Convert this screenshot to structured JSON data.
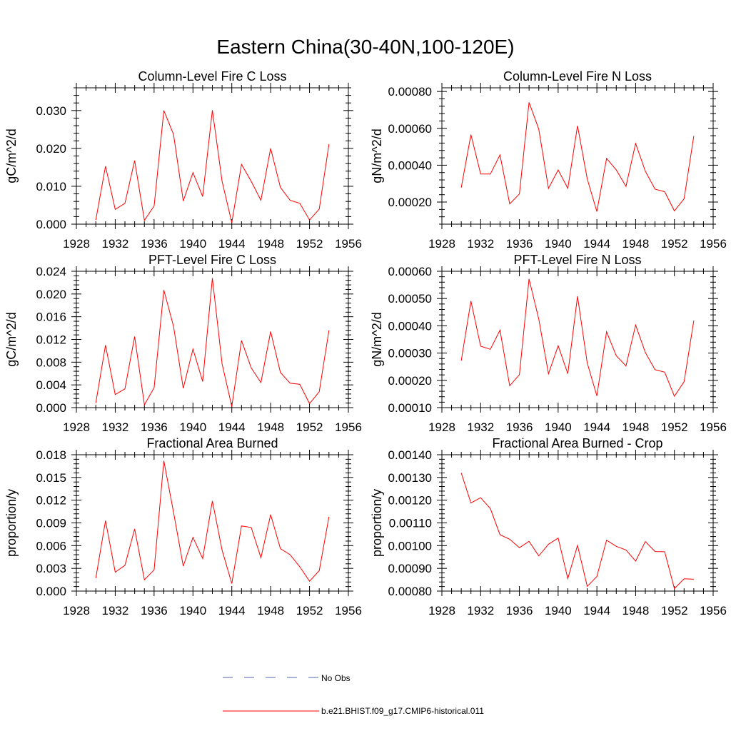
{
  "figure": {
    "title": "Eastern China(30-40N,100-120E)"
  },
  "legend": {
    "entries": [
      {
        "label": "No Obs",
        "color": "#5560b0",
        "style": "dashed"
      },
      {
        "label": "b.e21.BHIST.f09_g17.CMIP6-historical.011",
        "color": "#ff0000",
        "style": "solid"
      }
    ]
  },
  "chart_data": [
    {
      "type": "line",
      "title": "Column-Level Fire C Loss",
      "xlabel": "",
      "ylabel": "gC/m^2/d",
      "xlim": [
        1928,
        1956
      ],
      "xticks": [
        "1928",
        "1932",
        "1936",
        "1940",
        "1944",
        "1948",
        "1952",
        "1956"
      ],
      "ylim": [
        0,
        0.036
      ],
      "yticks": [
        "0.000",
        "0.010",
        "0.020",
        "0.030"
      ],
      "x": [
        1930,
        1931,
        1932,
        1933,
        1934,
        1935,
        1936,
        1937,
        1938,
        1939,
        1940,
        1941,
        1942,
        1943,
        1944,
        1945,
        1946,
        1947,
        1948,
        1949,
        1950,
        1951,
        1952,
        1953,
        1954
      ],
      "series": [
        {
          "color": "#ff0000",
          "values": [
            0.0011,
            0.0153,
            0.0039,
            0.0055,
            0.0168,
            0.001,
            0.0048,
            0.03,
            0.0237,
            0.0061,
            0.0136,
            0.0073,
            0.0301,
            0.0113,
            0.0004,
            0.0158,
            0.0113,
            0.0063,
            0.02,
            0.0097,
            0.0063,
            0.0055,
            0.0011,
            0.004,
            0.0211
          ]
        }
      ]
    },
    {
      "type": "line",
      "title": "Column-Level Fire N Loss",
      "xlabel": "",
      "ylabel": "gN/m^2/d",
      "xlim": [
        1928,
        1956
      ],
      "xticks": [
        "1928",
        "1932",
        "1936",
        "1940",
        "1944",
        "1948",
        "1952",
        "1956"
      ],
      "ylim": [
        8e-05,
        0.00082
      ],
      "yticks": [
        "0.00020",
        "0.00040",
        "0.00060",
        "0.00080"
      ],
      "x": [
        1930,
        1931,
        1932,
        1933,
        1934,
        1935,
        1936,
        1937,
        1938,
        1939,
        1940,
        1941,
        1942,
        1943,
        1944,
        1945,
        1946,
        1947,
        1948,
        1949,
        1950,
        1951,
        1952,
        1953,
        1954
      ],
      "series": [
        {
          "color": "#ff0000",
          "values": [
            0.000278,
            0.000566,
            0.000352,
            0.000352,
            0.000456,
            0.00019,
            0.000244,
            0.000741,
            0.000596,
            0.000274,
            0.000374,
            0.000274,
            0.000614,
            0.000326,
            0.000148,
            0.000437,
            0.000374,
            0.000285,
            0.000518,
            0.000367,
            0.00027,
            0.000256,
            0.000152,
            0.000218,
            0.000559
          ]
        }
      ]
    },
    {
      "type": "line",
      "title": "PFT-Level Fire C Loss",
      "xlabel": "",
      "ylabel": "gC/m^2/d",
      "xlim": [
        1928,
        1956
      ],
      "xticks": [
        "1928",
        "1932",
        "1936",
        "1940",
        "1944",
        "1948",
        "1952",
        "1956"
      ],
      "ylim": [
        0,
        0.024
      ],
      "yticks": [
        "0.000",
        "0.004",
        "0.008",
        "0.012",
        "0.016",
        "0.020",
        "0.024"
      ],
      "x": [
        1930,
        1931,
        1932,
        1933,
        1934,
        1935,
        1936,
        1937,
        1938,
        1939,
        1940,
        1941,
        1942,
        1943,
        1944,
        1945,
        1946,
        1947,
        1948,
        1949,
        1950,
        1951,
        1952,
        1953,
        1954
      ],
      "series": [
        {
          "color": "#ff0000",
          "values": [
            0.0008,
            0.011,
            0.0023,
            0.0033,
            0.0125,
            0.0005,
            0.0035,
            0.0207,
            0.0143,
            0.0034,
            0.0103,
            0.0046,
            0.0228,
            0.0077,
            0.0002,
            0.0118,
            0.007,
            0.0044,
            0.0134,
            0.0062,
            0.0043,
            0.0041,
            0.0007,
            0.0028,
            0.0136
          ]
        }
      ]
    },
    {
      "type": "line",
      "title": "PFT-Level Fire N Loss",
      "xlabel": "",
      "ylabel": "gN/m^2/d",
      "xlim": [
        1928,
        1956
      ],
      "xticks": [
        "1928",
        "1932",
        "1936",
        "1940",
        "1944",
        "1948",
        "1952",
        "1956"
      ],
      "ylim": [
        0.0001,
        0.0006
      ],
      "yticks": [
        "0.00010",
        "0.00020",
        "0.00030",
        "0.00040",
        "0.00050",
        "0.00060"
      ],
      "x": [
        1930,
        1931,
        1932,
        1933,
        1934,
        1935,
        1936,
        1937,
        1938,
        1939,
        1940,
        1941,
        1942,
        1943,
        1944,
        1945,
        1946,
        1947,
        1948,
        1949,
        1950,
        1951,
        1952,
        1953,
        1954
      ],
      "series": [
        {
          "color": "#ff0000",
          "values": [
            0.000272,
            0.000491,
            0.000325,
            0.000314,
            0.000384,
            0.00018,
            0.000221,
            0.000572,
            0.000425,
            0.000224,
            0.000327,
            0.000224,
            0.000508,
            0.000264,
            0.000143,
            0.000378,
            0.00029,
            0.000253,
            0.000403,
            0.000302,
            0.000239,
            0.00023,
            0.000142,
            0.000195,
            0.000419
          ]
        }
      ]
    },
    {
      "type": "line",
      "title": "Fractional Area Burned",
      "xlabel": "",
      "ylabel": "proportion/y",
      "xlim": [
        1928,
        1956
      ],
      "xticks": [
        "1928",
        "1932",
        "1936",
        "1940",
        "1944",
        "1948",
        "1952",
        "1956"
      ],
      "ylim": [
        0,
        0.018
      ],
      "yticks": [
        "0.000",
        "0.003",
        "0.006",
        "0.009",
        "0.012",
        "0.015",
        "0.018"
      ],
      "x": [
        1930,
        1931,
        1932,
        1933,
        1934,
        1935,
        1936,
        1937,
        1938,
        1939,
        1940,
        1941,
        1942,
        1943,
        1944,
        1945,
        1946,
        1947,
        1948,
        1949,
        1950,
        1951,
        1952,
        1953,
        1954
      ],
      "series": [
        {
          "color": "#ff0000",
          "values": [
            0.0017,
            0.0093,
            0.0025,
            0.0034,
            0.0082,
            0.0015,
            0.0028,
            0.0172,
            0.0104,
            0.0033,
            0.0071,
            0.0043,
            0.0119,
            0.0054,
            0.001,
            0.0086,
            0.0084,
            0.0044,
            0.0101,
            0.0056,
            0.0048,
            0.0032,
            0.0013,
            0.0027,
            0.0098
          ]
        }
      ]
    },
    {
      "type": "line",
      "title": "Fractional Area Burned - Crop",
      "xlabel": "",
      "ylabel": "proportion/y",
      "xlim": [
        1928,
        1956
      ],
      "xticks": [
        "1928",
        "1932",
        "1936",
        "1940",
        "1944",
        "1948",
        "1952",
        "1956"
      ],
      "ylim": [
        0.0008,
        0.0014
      ],
      "yticks": [
        "0.00080",
        "0.00090",
        "0.00100",
        "0.00110",
        "0.00120",
        "0.00130",
        "0.00140"
      ],
      "x": [
        1930,
        1931,
        1932,
        1933,
        1934,
        1935,
        1936,
        1937,
        1938,
        1939,
        1940,
        1941,
        1942,
        1943,
        1944,
        1945,
        1946,
        1947,
        1948,
        1949,
        1950,
        1951,
        1952,
        1953,
        1954
      ],
      "series": [
        {
          "color": "#ff0000",
          "values": [
            0.00132,
            0.001188,
            0.001211,
            0.001163,
            0.001048,
            0.001028,
            0.000991,
            0.001019,
            0.000955,
            0.001006,
            0.001033,
            0.000855,
            0.001001,
            0.000821,
            0.000864,
            0.001024,
            0.000997,
            0.000981,
            0.000932,
            0.001018,
            0.000974,
            0.000973,
            0.000811,
            0.000854,
            0.000852
          ]
        }
      ]
    }
  ]
}
